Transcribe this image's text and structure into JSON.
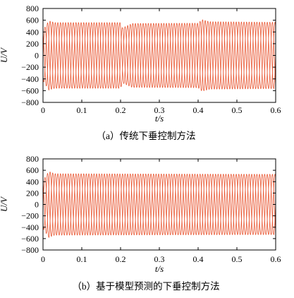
{
  "chart_data": [
    {
      "type": "line",
      "caption": "（a）传统下垂控制方法",
      "xlabel": "t/s",
      "ylabel": "U/V",
      "xlim": [
        0,
        0.6
      ],
      "ylim": [
        -800,
        800
      ],
      "xticks": [
        "0",
        "0.1",
        "0.2",
        "0.3",
        "0.4",
        "0.5",
        "0.6"
      ],
      "yticks": [
        "800",
        "600",
        "400",
        "200",
        "0",
        "−200",
        "−400",
        "−600",
        "−800"
      ],
      "grid": false,
      "line_color": "#e8502a",
      "series": [
        {
          "phase_deg": 0
        },
        {
          "phase_deg": -120
        },
        {
          "phase_deg": 120
        }
      ],
      "frequency_hz": 50,
      "envelope": {
        "t": [
          0,
          0.015,
          0.03,
          0.2,
          0.205,
          0.23,
          0.4,
          0.41,
          0.43,
          0.6
        ],
        "amplitude": [
          430,
          590,
          560,
          560,
          470,
          545,
          550,
          610,
          575,
          565
        ]
      }
    },
    {
      "type": "line",
      "caption": "（b）基于模型预测的下垂控制方法",
      "xlabel": "t/s",
      "ylabel": "U/V",
      "xlim": [
        0,
        0.6
      ],
      "ylim": [
        -800,
        800
      ],
      "xticks": [
        "0",
        "0.1",
        "0.2",
        "0.3",
        "0.4",
        "0.5",
        "0.6"
      ],
      "yticks": [
        "800",
        "600",
        "400",
        "200",
        "0",
        "−200",
        "−400",
        "−600",
        "−800"
      ],
      "grid": false,
      "line_color": "#e8502a",
      "series": [
        {
          "phase_deg": 0
        },
        {
          "phase_deg": -120
        },
        {
          "phase_deg": 120
        }
      ],
      "frequency_hz": 50,
      "envelope": {
        "t": [
          0,
          0.015,
          0.03,
          0.6
        ],
        "amplitude": [
          420,
          580,
          540,
          530
        ]
      }
    }
  ]
}
